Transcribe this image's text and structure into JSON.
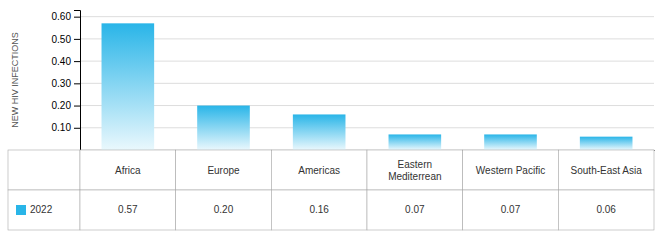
{
  "chart_data": {
    "type": "bar",
    "ylabel": "NEW HIV INFECTIONS",
    "categories": [
      "Africa",
      "Europe",
      "Americas",
      "Eastern\nMediterrean",
      "Western Pacific",
      "South-East Asia"
    ],
    "series": [
      {
        "name": "2022",
        "color": "#29b5e8",
        "values": [
          0.57,
          0.2,
          0.16,
          0.07,
          0.07,
          0.06
        ],
        "value_labels": [
          "0.57",
          "0.20",
          "0.16",
          "0.07",
          "0.07",
          "0.06"
        ]
      }
    ],
    "ylim": [
      0,
      0.63
    ],
    "yticks": [
      {
        "value": 0.0,
        "label": "-"
      },
      {
        "value": 0.1,
        "label": "0.10"
      },
      {
        "value": 0.2,
        "label": "0.20"
      },
      {
        "value": 0.3,
        "label": "0.30"
      },
      {
        "value": 0.4,
        "label": "0.40"
      },
      {
        "value": 0.5,
        "label": "0.50"
      },
      {
        "value": 0.6,
        "label": "0.60"
      }
    ],
    "grid": true,
    "data_labels": true
  }
}
